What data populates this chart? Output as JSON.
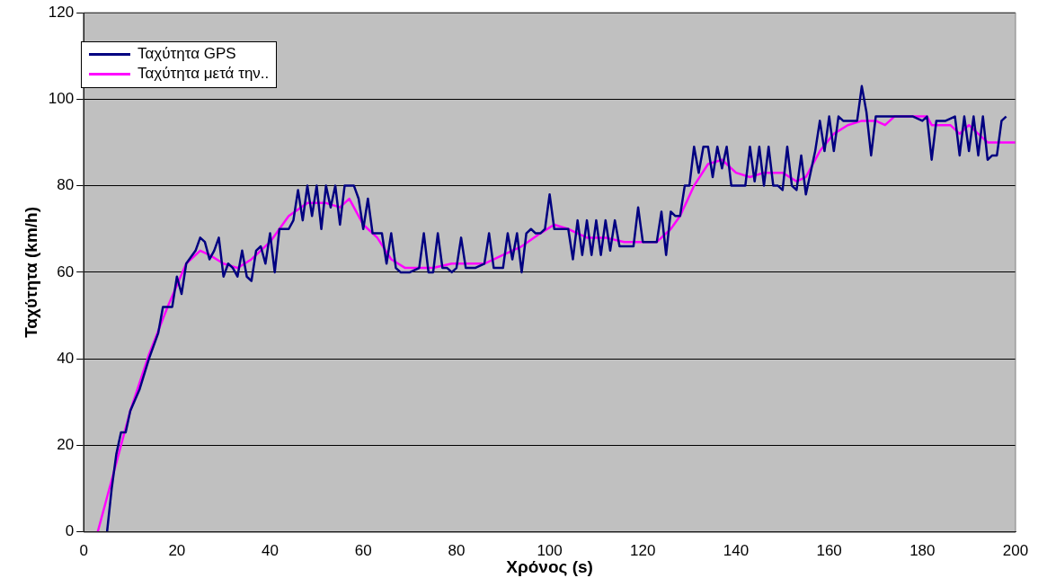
{
  "chart_data": {
    "type": "line",
    "xlabel": "Χρόνος (s)",
    "ylabel": "Ταχύτητα (km/h)",
    "xlim": [
      0,
      200
    ],
    "xticks": [
      0,
      20,
      40,
      60,
      80,
      100,
      120,
      140,
      160,
      180,
      200
    ],
    "ylim": [
      0,
      120
    ],
    "yticks": [
      0,
      20,
      40,
      60,
      80,
      100,
      120
    ],
    "grid": "y",
    "legend": "top left",
    "marker": "none",
    "line_style": "solid",
    "series": [
      {
        "name": "Ταχύτητα GPS",
        "color": "#000080",
        "x": [
          5,
          6,
          7,
          8,
          9,
          10,
          12,
          14,
          16,
          17,
          19,
          20,
          21,
          22,
          24,
          25,
          26,
          27,
          28,
          29,
          30,
          31,
          32,
          33,
          34,
          35,
          36,
          37,
          38,
          39,
          40,
          41,
          42,
          44,
          45,
          46,
          47,
          48,
          49,
          50,
          51,
          52,
          53,
          54,
          55,
          56,
          58,
          59,
          60,
          61,
          62,
          64,
          65,
          66,
          67,
          68,
          70,
          72,
          73,
          74,
          75,
          76,
          77,
          78,
          79,
          80,
          81,
          82,
          84,
          86,
          87,
          88,
          90,
          91,
          92,
          93,
          94,
          95,
          96,
          97,
          98,
          99,
          100,
          101,
          104,
          105,
          106,
          107,
          108,
          109,
          110,
          111,
          112,
          113,
          114,
          115,
          116,
          118,
          119,
          120,
          123,
          124,
          125,
          126,
          127,
          128,
          129,
          130,
          131,
          132,
          133,
          134,
          135,
          136,
          137,
          138,
          139,
          141,
          142,
          143,
          144,
          145,
          146,
          147,
          148,
          149,
          150,
          151,
          152,
          153,
          154,
          155,
          156,
          157,
          158,
          159,
          160,
          161,
          162,
          163,
          164,
          166,
          167,
          168,
          169,
          170,
          172,
          178,
          180,
          181,
          182,
          183,
          185,
          187,
          188,
          189,
          190,
          191,
          192,
          193,
          194,
          195,
          196,
          197,
          198
        ],
        "values": [
          0,
          10,
          18,
          23,
          23,
          28,
          33,
          40,
          46,
          52,
          52,
          59,
          55,
          62,
          65,
          68,
          67,
          63,
          65,
          68,
          59,
          62,
          61,
          59,
          65,
          59,
          58,
          65,
          66,
          62,
          69,
          60,
          70,
          70,
          72,
          79,
          72,
          80,
          73,
          80,
          70,
          80,
          75,
          80,
          71,
          80,
          80,
          77,
          70,
          77,
          69,
          69,
          62,
          69,
          61,
          60,
          60,
          61,
          69,
          60,
          60,
          69,
          61,
          61,
          60,
          61,
          68,
          61,
          61,
          62,
          69,
          61,
          61,
          69,
          63,
          69,
          60,
          69,
          70,
          69,
          69,
          70,
          78,
          70,
          70,
          63,
          72,
          64,
          72,
          64,
          72,
          64,
          72,
          65,
          72,
          66,
          66,
          66,
          75,
          67,
          67,
          74,
          64,
          74,
          73,
          73,
          80,
          80,
          89,
          83,
          89,
          89,
          82,
          89,
          84,
          89,
          80,
          80,
          80,
          89,
          81,
          89,
          80,
          89,
          80,
          80,
          79,
          89,
          80,
          79,
          87,
          78,
          83,
          88,
          95,
          88,
          96,
          88,
          96,
          95,
          95,
          95,
          103,
          97,
          87,
          96,
          96,
          96,
          95,
          96,
          86,
          95,
          95,
          96,
          87,
          96,
          88,
          96,
          87,
          96,
          86,
          87,
          87,
          95,
          96
        ]
      },
      {
        "name": "Ταχύτητα μετά την..",
        "color": "#ff00ff",
        "x": [
          3,
          6,
          10,
          14,
          18,
          20,
          22,
          25,
          27,
          30,
          33,
          36,
          40,
          44,
          48,
          52,
          55,
          57,
          60,
          63,
          66,
          69,
          75,
          79,
          82,
          86,
          90,
          94,
          98,
          101,
          104,
          108,
          112,
          116,
          120,
          123,
          126,
          128,
          131,
          134,
          137,
          140,
          143,
          146,
          150,
          153,
          155,
          158,
          161,
          164,
          167,
          170,
          172,
          174,
          178,
          181,
          182,
          186,
          188,
          190,
          192,
          194,
          197,
          200
        ],
        "values": [
          0,
          12,
          28,
          41,
          52,
          57,
          62,
          65,
          64,
          62,
          61,
          63,
          67,
          73,
          76,
          76,
          75,
          77,
          71,
          68,
          63,
          61,
          61,
          62,
          62,
          62,
          64,
          66,
          69,
          71,
          70,
          68,
          68,
          67,
          67,
          67,
          70,
          73,
          80,
          85,
          86,
          83,
          82,
          83,
          83,
          81,
          82,
          88,
          92,
          94,
          95,
          95,
          94,
          96,
          96,
          96,
          94,
          94,
          92,
          94,
          92,
          90,
          90,
          90
        ]
      }
    ]
  }
}
